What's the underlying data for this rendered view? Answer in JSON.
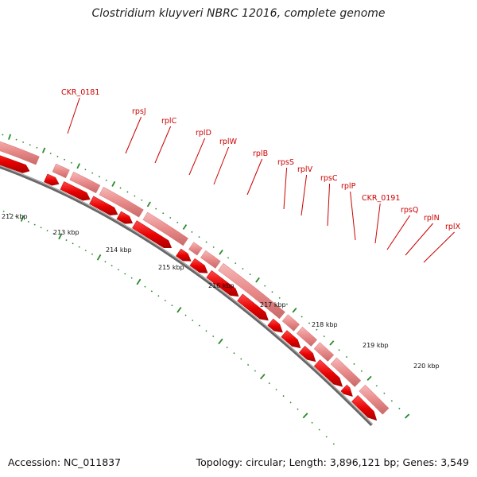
{
  "title": "Clostridium kluyveri NBRC 12016, complete genome",
  "footer": {
    "accession": "Accession: NC_011837",
    "summary": "Topology: circular; Length: 3,896,121 bp; Genes: 3,549"
  },
  "colors": {
    "gene_arrow": "#ee1111",
    "cds_band": "#ea8a8a",
    "backbone": "#888888",
    "tick": "#2a8a2a",
    "label": "#cc0000"
  },
  "gene_labels": [
    "CKR_0181",
    "rpsJ",
    "rplC",
    "rplD",
    "rplW",
    "rplB",
    "rpsS",
    "rplV",
    "rpsC",
    "rplP",
    "CKR_0191",
    "rpsQ",
    "rplN",
    "rplX"
  ],
  "kbp_labels": [
    "212 kbp",
    "213 kbp",
    "214 kbp",
    "215 kbp",
    "216 kbp",
    "217 kbp",
    "218 kbp",
    "219 kbp",
    "220 kbp"
  ]
}
